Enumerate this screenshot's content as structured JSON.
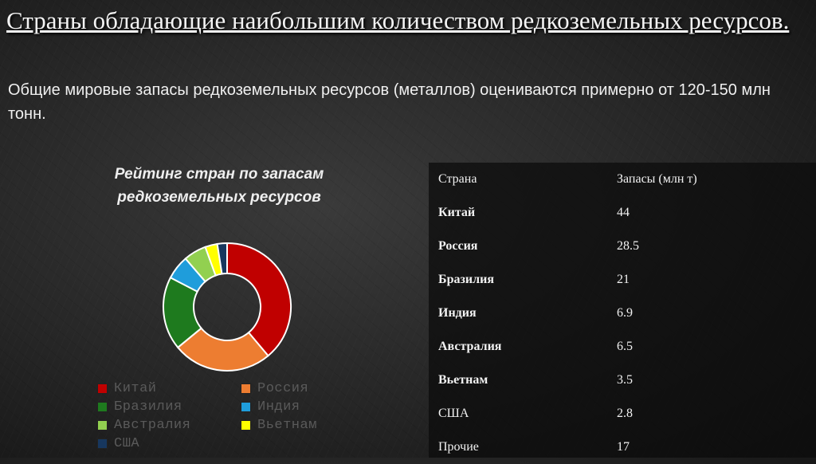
{
  "title": "Страны обладающие наибольшим количеством редкоземельных ресурсов.",
  "subtitle": "Общие мировые запасы редкоземельных ресурсов (металлов) оцениваются примерно от 120-150 млн тонн.",
  "chart_data": {
    "type": "pie",
    "title": "Рейтинг стран по запасам редкоземельных ресурсов",
    "categories": [
      "Китай",
      "Россия",
      "Бразилия",
      "Индия",
      "Австралия",
      "Вьетнам",
      "США"
    ],
    "values": [
      44,
      28.5,
      21,
      6.9,
      6.5,
      3.5,
      2.8
    ],
    "colors": [
      "#c00000",
      "#ed7d31",
      "#1e7a1e",
      "#1f9ddb",
      "#92d050",
      "#ffff00",
      "#17375e"
    ],
    "legend_placement": "bottom"
  },
  "table": {
    "headers": [
      "Страна",
      "Запасы (млн т)"
    ],
    "rows": [
      [
        "Китай",
        "44"
      ],
      [
        "Россия",
        "28.5"
      ],
      [
        "Бразилия",
        "21"
      ],
      [
        "Индия",
        "6.9"
      ],
      [
        "Австралия",
        "6.5"
      ],
      [
        "Вьетнам",
        "3.5"
      ],
      [
        "США",
        "2.8"
      ],
      [
        "Прочие",
        "17"
      ]
    ],
    "bold_rows": [
      0,
      1,
      2,
      3,
      4,
      5
    ]
  }
}
